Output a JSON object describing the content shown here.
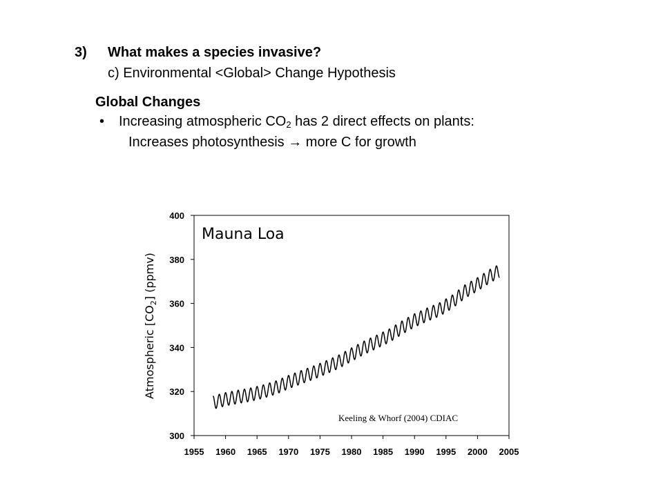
{
  "slide": {
    "heading_number": "3)",
    "heading": "What makes a species invasive?",
    "subheading": "c) Environmental <Global> Change Hypothesis",
    "section_title": "Global Changes",
    "bullet_symbol": "•",
    "bullet_prefix": "Increasing atmospheric CO",
    "bullet_sub": "2",
    "bullet_suffix": " has 2 direct effects on plants:",
    "sub_bullet": "Increases photosynthesis → more C for growth"
  },
  "chart_data": {
    "type": "line",
    "title": "Mauna Loa",
    "ylabel_prefix": "Atmospheric [CO",
    "ylabel_sub": "2",
    "ylabel_suffix": "] (ppmv)",
    "annotation": "Keeling & Whorf (2004) CDIAC",
    "xlim": [
      1955,
      2005
    ],
    "ylim": [
      300,
      400
    ],
    "x_ticks": [
      "1955",
      "1960",
      "1965",
      "1970",
      "1975",
      "1980",
      "1985",
      "1990",
      "1995",
      "2000",
      "2005"
    ],
    "y_ticks": [
      "300",
      "320",
      "340",
      "360",
      "380",
      "400"
    ],
    "grid": false,
    "seasonal_amplitude_ppmv": 3,
    "series": [
      {
        "x": [
          1958.0,
          1960,
          1962,
          1964,
          1966,
          1968,
          1970,
          1972,
          1974,
          1976,
          1978,
          1980,
          1982,
          1984,
          1986,
          1988,
          1990,
          1992,
          1994,
          1996,
          1998,
          2000,
          2002,
          2003.5
        ],
        "y": [
          315.0,
          316.5,
          317.6,
          318.6,
          320.0,
          321.8,
          324.3,
          326.5,
          328.6,
          331.0,
          333.6,
          336.8,
          339.9,
          342.6,
          345.4,
          349.0,
          352.3,
          354.9,
          357.3,
          360.8,
          365.4,
          368.7,
          372.5,
          374.8
        ],
        "color": "#000000"
      }
    ]
  }
}
